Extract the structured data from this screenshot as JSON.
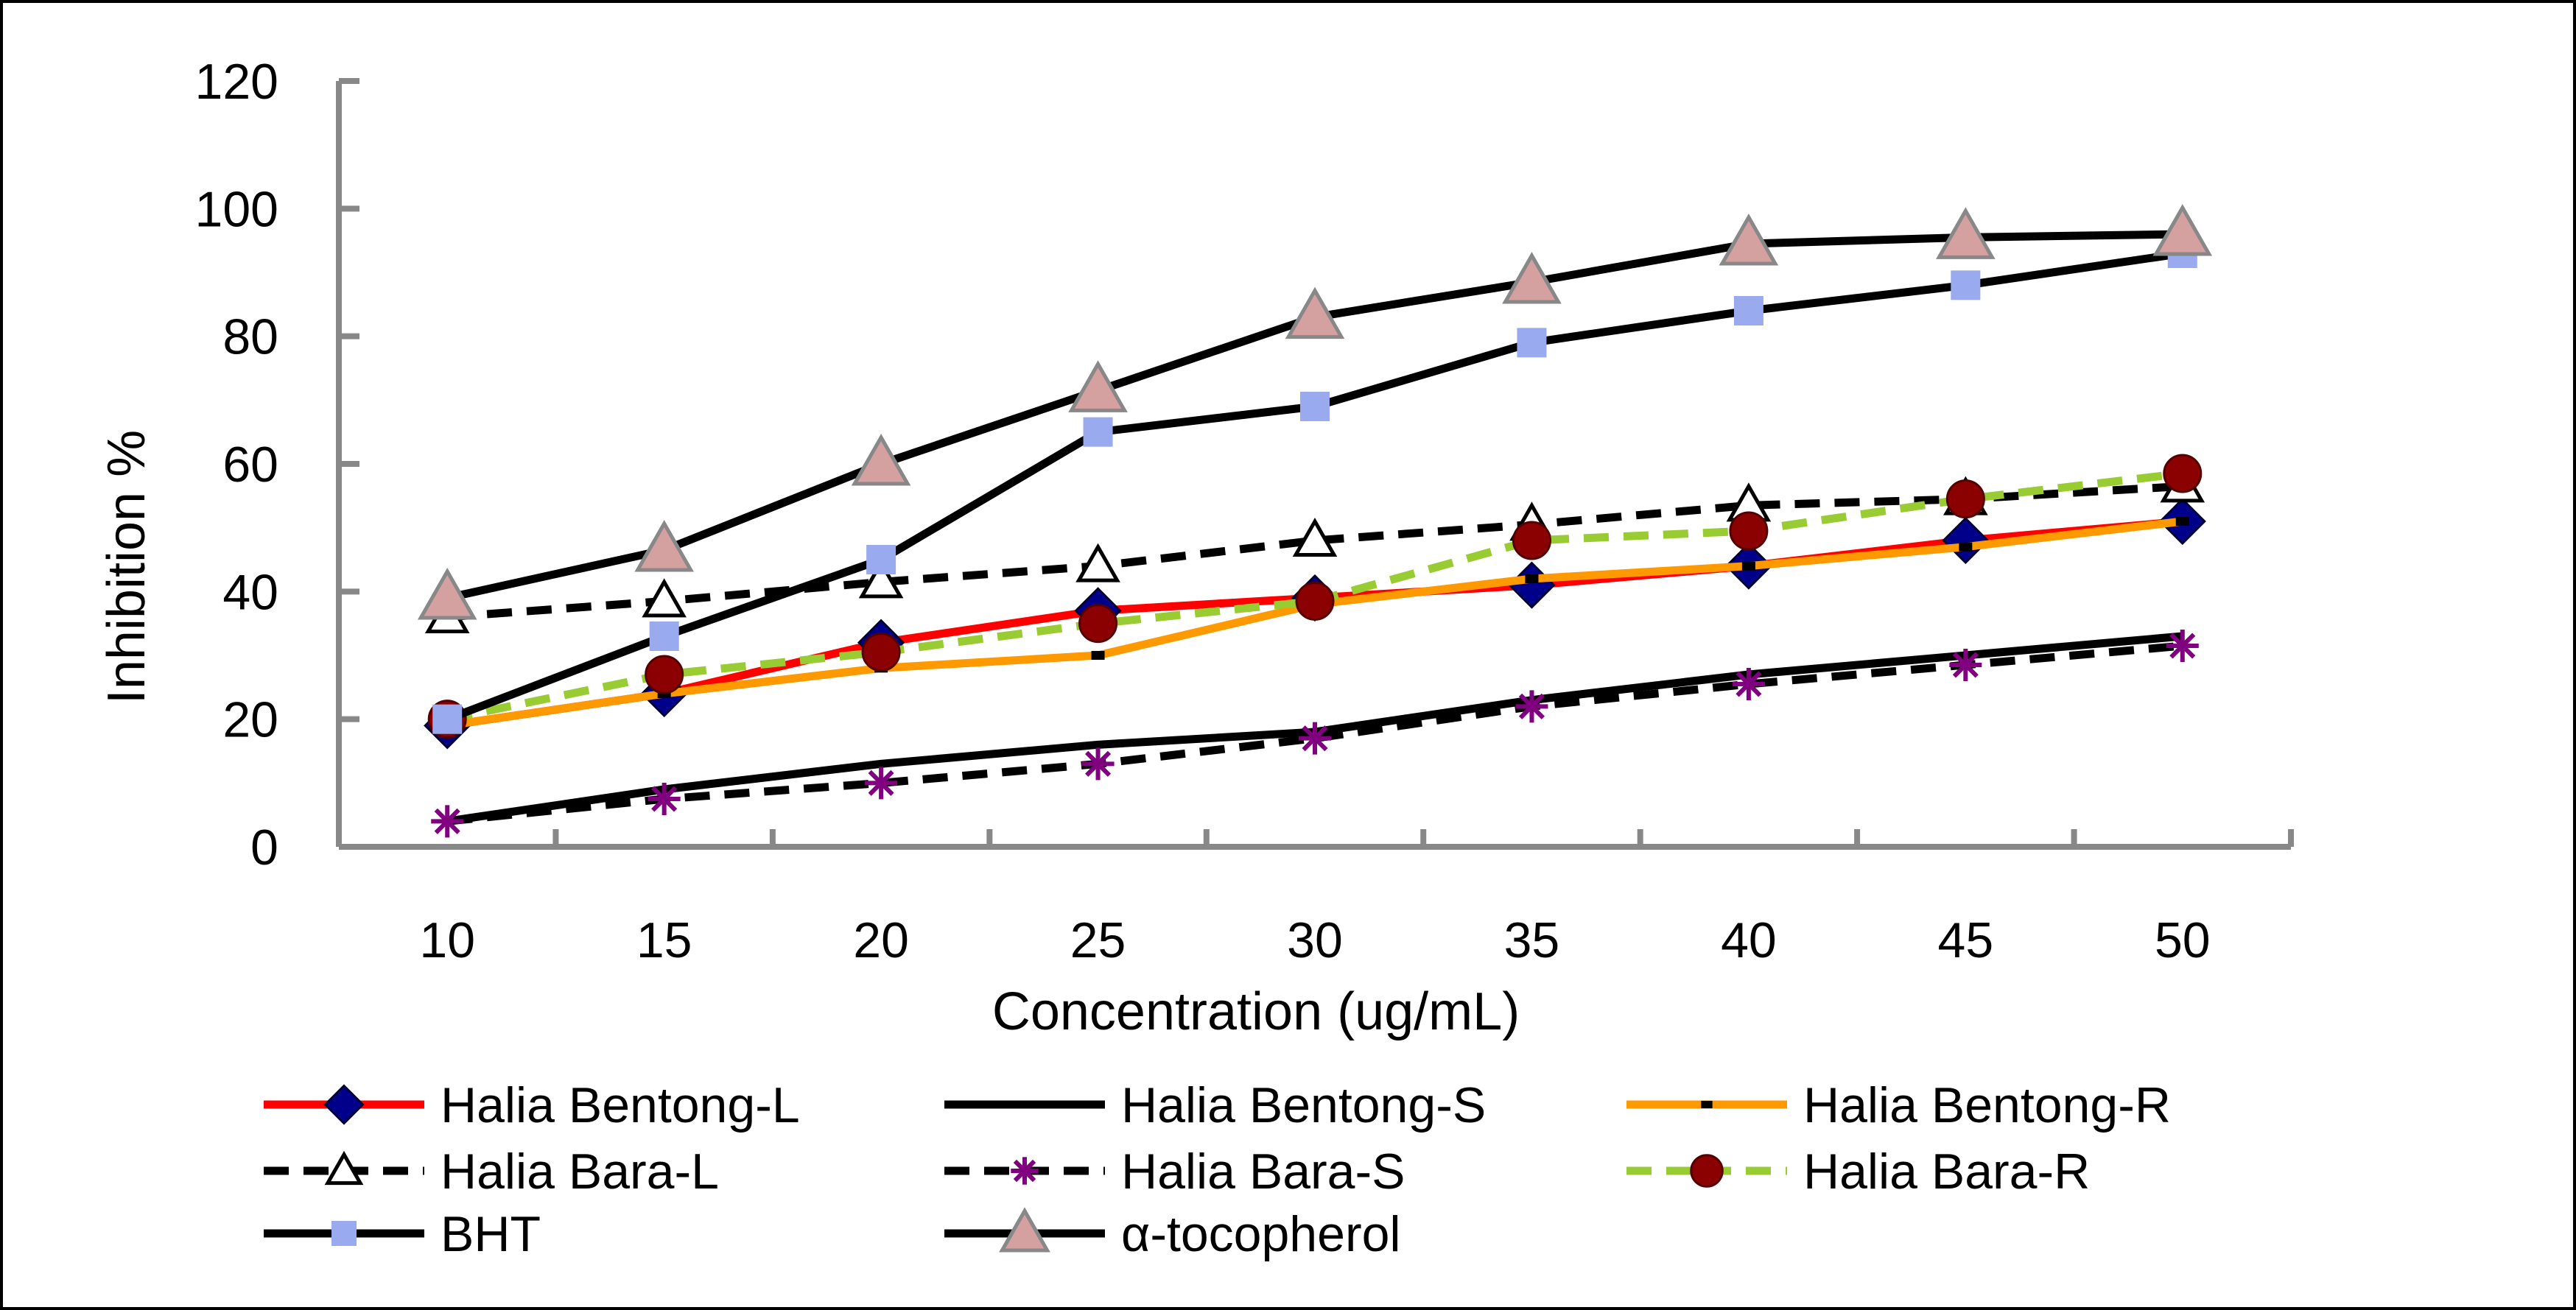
{
  "chart_data": {
    "type": "line",
    "title": "",
    "xlabel": "Concentration (ug/mL)",
    "ylabel": "Inhibition %",
    "x": [
      10,
      15,
      20,
      25,
      30,
      35,
      40,
      45,
      50
    ],
    "xtick_labels": [
      "10",
      "15",
      "20",
      "25",
      "30",
      "35",
      "40",
      "45",
      "50"
    ],
    "ylim": [
      0,
      120
    ],
    "yticks": [
      0,
      20,
      40,
      60,
      80,
      100,
      120
    ],
    "ytick_labels": [
      "0",
      "20",
      "40",
      "60",
      "80",
      "100",
      "120"
    ],
    "grid": false,
    "legend_position": "bottom",
    "series": [
      {
        "name": "Halia Bentong-L",
        "color": "#ff0000",
        "dash": "solid",
        "marker": "diamond",
        "marker_color": "#00008b",
        "values": [
          19,
          24,
          32,
          37,
          39,
          41,
          44,
          48,
          51
        ]
      },
      {
        "name": "Halia Bentong-S",
        "color": "#000000",
        "dash": "solid",
        "marker": "none",
        "marker_color": "#000000",
        "values": [
          4,
          9,
          13,
          16,
          18,
          23,
          27,
          30,
          33
        ]
      },
      {
        "name": "Halia Bentong-R",
        "color": "#ff9900",
        "dash": "solid",
        "marker": "dash",
        "marker_color": "#000000",
        "values": [
          19,
          24,
          28,
          30,
          38,
          42,
          44,
          47,
          51
        ]
      },
      {
        "name": "Halia Bara-L",
        "color": "#000000",
        "dash": "dashed",
        "marker": "triangle-open",
        "marker_color": "#ffffff",
        "values": [
          36,
          38.5,
          41.5,
          44,
          48,
          50.5,
          53.5,
          54.5,
          56.5
        ]
      },
      {
        "name": "Halia Bara-S",
        "color": "#000000",
        "dash": "dashed",
        "marker": "asterisk",
        "marker_color": "#800080",
        "values": [
          4,
          7.5,
          10,
          13,
          17,
          22,
          25.5,
          28.5,
          31.5
        ]
      },
      {
        "name": "Halia Bara-R",
        "color": "#99cc33",
        "dash": "dashed",
        "marker": "circle",
        "marker_color": "#8b0000",
        "values": [
          20,
          27,
          30.5,
          35,
          38.5,
          48,
          49.5,
          54.5,
          58.5
        ]
      },
      {
        "name": "BHT",
        "color": "#000000",
        "dash": "solid",
        "marker": "square",
        "marker_color": "#99aaee",
        "values": [
          20,
          33,
          45,
          65,
          69,
          79,
          84,
          88,
          93
        ]
      },
      {
        "name": "α-tocopherol",
        "color": "#000000",
        "dash": "solid",
        "marker": "triangle",
        "marker_color": "#d4a0a0",
        "values": [
          39,
          46.5,
          60,
          71.5,
          83,
          88.5,
          94.5,
          95.5,
          96
        ]
      }
    ]
  }
}
